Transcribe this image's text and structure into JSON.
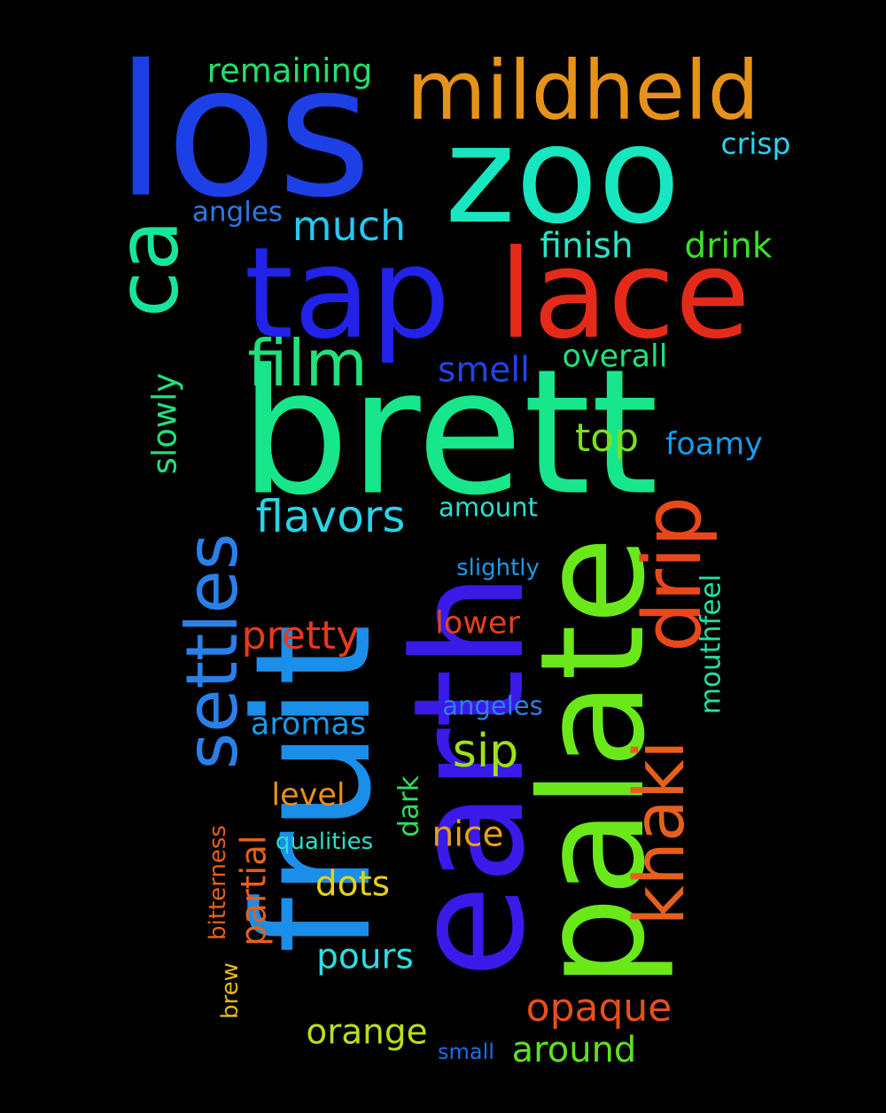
{
  "background": "#000000",
  "words": [
    {
      "id": "los",
      "text": "los",
      "color": "#1c3fe6"
    },
    {
      "id": "zoo",
      "text": "zoo",
      "color": "#17e6c0"
    },
    {
      "id": "mildheld",
      "text": "mildheld",
      "color": "#e6921a"
    },
    {
      "id": "remaining",
      "text": "remaining",
      "color": "#22e06a"
    },
    {
      "id": "crisp",
      "text": "crisp",
      "color": "#28d4ee"
    },
    {
      "id": "ca",
      "text": "ca",
      "color": "#17e69a"
    },
    {
      "id": "tap",
      "text": "tap",
      "color": "#2222e8"
    },
    {
      "id": "lace",
      "text": "lace",
      "color": "#e62a1a"
    },
    {
      "id": "angles",
      "text": "angles",
      "color": "#2a7ae8"
    },
    {
      "id": "much",
      "text": "much",
      "color": "#28c8ee"
    },
    {
      "id": "finish",
      "text": "finish",
      "color": "#28e6c8"
    },
    {
      "id": "drink",
      "text": "drink",
      "color": "#3ae028"
    },
    {
      "id": "film",
      "text": "film",
      "color": "#22e07a"
    },
    {
      "id": "smell",
      "text": "smell",
      "color": "#2244e8"
    },
    {
      "id": "overall",
      "text": "overall",
      "color": "#22e07a"
    },
    {
      "id": "brett",
      "text": "brett",
      "color": "#17e68a"
    },
    {
      "id": "slowly",
      "text": "slowly",
      "color": "#22e07a"
    },
    {
      "id": "top",
      "text": "top",
      "color": "#7ae022"
    },
    {
      "id": "foamy",
      "text": "foamy",
      "color": "#1a9ae8"
    },
    {
      "id": "flavors",
      "text": "flavors",
      "color": "#28d4e6"
    },
    {
      "id": "amount",
      "text": "amount",
      "color": "#28e0d0"
    },
    {
      "id": "settles",
      "text": "settles",
      "color": "#2a80e8"
    },
    {
      "id": "fruit",
      "text": "fruit",
      "color": "#1a8ee8"
    },
    {
      "id": "earth",
      "text": "earth",
      "color": "#3a1ae8"
    },
    {
      "id": "palate",
      "text": "palate",
      "color": "#6ae81a"
    },
    {
      "id": "drip",
      "text": "drip",
      "color": "#e8481a"
    },
    {
      "id": "slightly",
      "text": "slightly",
      "color": "#1a9ae8"
    },
    {
      "id": "mouthfeel",
      "text": "mouthfeel",
      "color": "#22e0a0"
    },
    {
      "id": "pretty",
      "text": "pretty",
      "color": "#e63a1a"
    },
    {
      "id": "lower",
      "text": "lower",
      "color": "#e6401a"
    },
    {
      "id": "khaki",
      "text": "khaki",
      "color": "#e6601a"
    },
    {
      "id": "angeles",
      "text": "angeles",
      "color": "#2a80e8"
    },
    {
      "id": "aromas",
      "text": "aromas",
      "color": "#1a9ae8"
    },
    {
      "id": "sip",
      "text": "sip",
      "color": "#a0e01a"
    },
    {
      "id": "level",
      "text": "level",
      "color": "#e6901a"
    },
    {
      "id": "dark",
      "text": "dark",
      "color": "#2ae060"
    },
    {
      "id": "bitterness",
      "text": "bitterness",
      "color": "#e6601a"
    },
    {
      "id": "partial",
      "text": "partial",
      "color": "#e6601a"
    },
    {
      "id": "qualities",
      "text": "qualities",
      "color": "#28e0c8"
    },
    {
      "id": "nice",
      "text": "nice",
      "color": "#e6a01a"
    },
    {
      "id": "dots",
      "text": "dots",
      "color": "#e6d01a"
    },
    {
      "id": "pours",
      "text": "pours",
      "color": "#28e0e6"
    },
    {
      "id": "brew",
      "text": "brew",
      "color": "#e6b81a"
    },
    {
      "id": "opaque",
      "text": "opaque",
      "color": "#e6501a"
    },
    {
      "id": "orange",
      "text": "orange",
      "color": "#b8e01a"
    },
    {
      "id": "small",
      "text": "small",
      "color": "#1a70e8"
    },
    {
      "id": "around",
      "text": "around",
      "color": "#60e022"
    }
  ]
}
